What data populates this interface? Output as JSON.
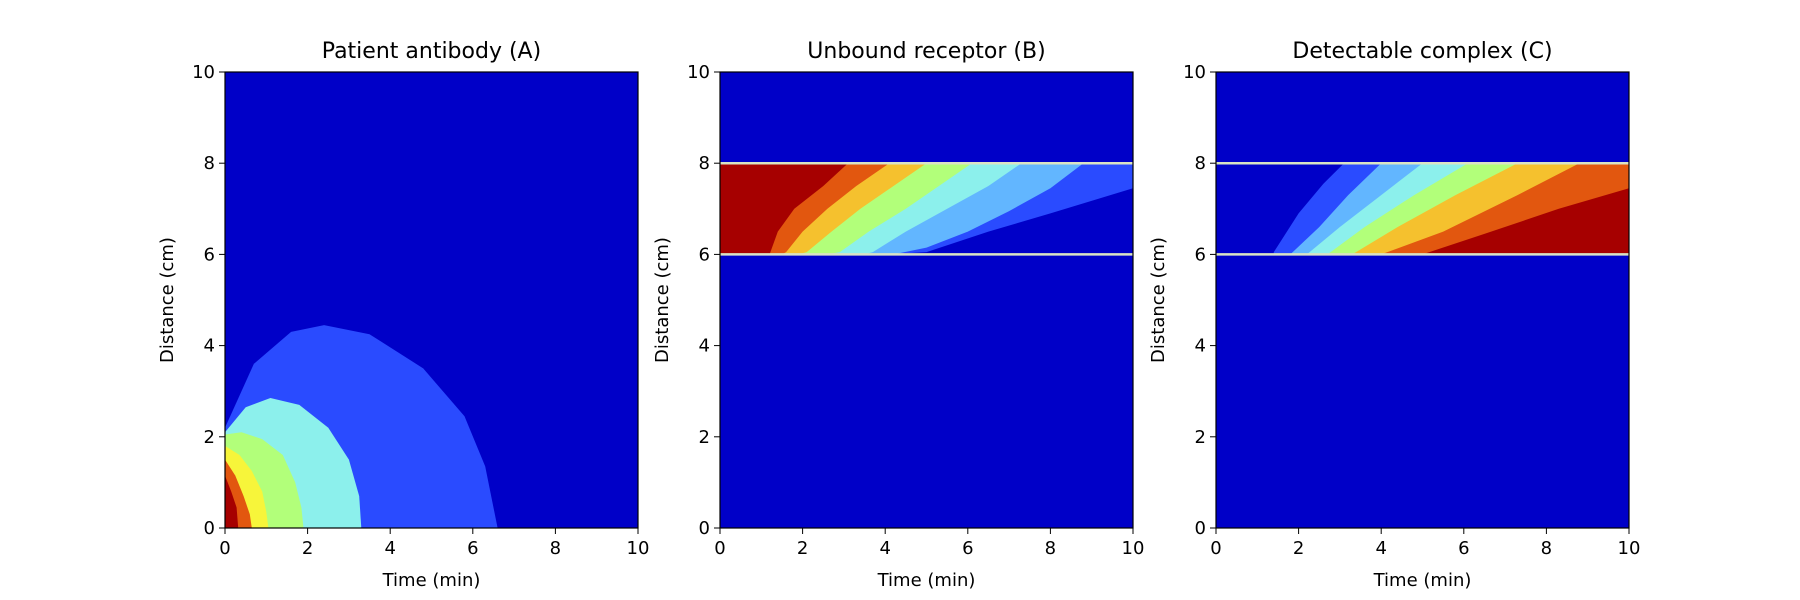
{
  "colors": {
    "background": "#0000c8",
    "level_1": "#2a4bff",
    "level_2": "#62b6ff",
    "level_3": "#8cf0ec",
    "level_4": "#b2ff7a",
    "level_5": "#f7f53a",
    "level_6": "#f5c12e",
    "level_7": "#e2570f",
    "level_8": "#a60000",
    "boundary": "#d9e3c4"
  },
  "chart_data": [
    {
      "type": "heatmap",
      "title": "Patient antibody (A)",
      "xlabel": "Time (min)",
      "ylabel": "Distance (cm)",
      "xlim": [
        0,
        10
      ],
      "ylim": [
        0,
        10
      ],
      "xticks": [
        "0",
        "2",
        "4",
        "6",
        "8",
        "10"
      ],
      "yticks": [
        "0",
        "2",
        "4",
        "6",
        "8",
        "10"
      ],
      "contours": [
        {
          "level": 1,
          "color": "level_1",
          "points": [
            [
              0,
              0
            ],
            [
              0,
              2.2
            ],
            [
              0.7,
              3.6
            ],
            [
              1.6,
              4.3
            ],
            [
              2.4,
              4.45
            ],
            [
              3.5,
              4.25
            ],
            [
              4.8,
              3.5
            ],
            [
              5.8,
              2.45
            ],
            [
              6.3,
              1.35
            ],
            [
              6.6,
              0
            ]
          ]
        },
        {
          "level": 3,
          "color": "level_3",
          "points": [
            [
              0,
              0
            ],
            [
              0,
              2.1
            ],
            [
              0.5,
              2.65
            ],
            [
              1.1,
              2.85
            ],
            [
              1.8,
              2.7
            ],
            [
              2.5,
              2.2
            ],
            [
              3.0,
              1.5
            ],
            [
              3.25,
              0.7
            ],
            [
              3.3,
              0
            ]
          ]
        },
        {
          "level": 4,
          "color": "level_4",
          "points": [
            [
              0,
              0
            ],
            [
              0,
              2.05
            ],
            [
              0.4,
              2.1
            ],
            [
              0.9,
              1.95
            ],
            [
              1.4,
              1.6
            ],
            [
              1.7,
              1.0
            ],
            [
              1.85,
              0.45
            ],
            [
              1.9,
              0
            ]
          ]
        },
        {
          "level": 5,
          "color": "level_5",
          "points": [
            [
              0,
              0
            ],
            [
              0,
              1.8
            ],
            [
              0.35,
              1.6
            ],
            [
              0.65,
              1.25
            ],
            [
              0.9,
              0.8
            ],
            [
              1.0,
              0.35
            ],
            [
              1.05,
              0
            ]
          ]
        },
        {
          "level": 7,
          "color": "level_7",
          "points": [
            [
              0,
              0
            ],
            [
              0,
              1.5
            ],
            [
              0.25,
              1.15
            ],
            [
              0.45,
              0.7
            ],
            [
              0.6,
              0.3
            ],
            [
              0.65,
              0
            ]
          ]
        },
        {
          "level": 8,
          "color": "level_8",
          "points": [
            [
              0,
              0
            ],
            [
              0,
              1.15
            ],
            [
              0.15,
              0.8
            ],
            [
              0.28,
              0.45
            ],
            [
              0.32,
              0
            ]
          ]
        }
      ]
    },
    {
      "type": "heatmap",
      "title": "Unbound receptor (B)",
      "xlabel": "Time (min)",
      "ylabel": "Distance (cm)",
      "xlim": [
        0,
        10
      ],
      "ylim": [
        0,
        10
      ],
      "xticks": [
        "0",
        "2",
        "4",
        "6",
        "8",
        "10"
      ],
      "yticks": [
        "0",
        "2",
        "4",
        "6",
        "8",
        "10"
      ],
      "band": [
        6,
        8
      ],
      "contours": [
        {
          "level": 1,
          "color": "level_1",
          "points": [
            [
              0,
              6
            ],
            [
              0,
              8
            ],
            [
              10,
              8
            ],
            [
              10,
              7.45
            ],
            [
              8,
              6.9
            ],
            [
              6.5,
              6.5
            ],
            [
              5,
              6.05
            ],
            [
              4,
              6
            ],
            [
              0,
              6
            ]
          ]
        },
        {
          "level": 2,
          "color": "level_2",
          "points": [
            [
              0,
              6
            ],
            [
              0,
              8
            ],
            [
              8.8,
              8
            ],
            [
              8,
              7.45
            ],
            [
              7,
              6.95
            ],
            [
              6,
              6.5
            ],
            [
              5,
              6.15
            ],
            [
              4.2,
              6
            ],
            [
              0,
              6
            ]
          ]
        },
        {
          "level": 3,
          "color": "level_3",
          "points": [
            [
              0,
              6
            ],
            [
              0,
              8
            ],
            [
              7.3,
              8
            ],
            [
              6.5,
              7.5
            ],
            [
              5.5,
              7
            ],
            [
              4.5,
              6.5
            ],
            [
              3.7,
              6.05
            ],
            [
              3.5,
              6
            ],
            [
              0,
              6
            ]
          ]
        },
        {
          "level": 4,
          "color": "level_4",
          "points": [
            [
              0,
              6
            ],
            [
              0,
              8
            ],
            [
              6.1,
              8
            ],
            [
              5.3,
              7.5
            ],
            [
              4.5,
              7
            ],
            [
              3.6,
              6.5
            ],
            [
              2.9,
              6.05
            ],
            [
              2.6,
              6
            ],
            [
              0,
              6
            ]
          ]
        },
        {
          "level": 6,
          "color": "level_6",
          "points": [
            [
              0,
              6
            ],
            [
              0,
              8
            ],
            [
              5,
              8
            ],
            [
              4.2,
              7.5
            ],
            [
              3.4,
              7
            ],
            [
              2.7,
              6.5
            ],
            [
              2.1,
              6.05
            ],
            [
              1.9,
              6
            ],
            [
              0,
              6
            ]
          ]
        },
        {
          "level": 7,
          "color": "level_7",
          "points": [
            [
              0,
              6
            ],
            [
              0,
              8
            ],
            [
              4.1,
              8
            ],
            [
              3.3,
              7.5
            ],
            [
              2.6,
              7
            ],
            [
              2.0,
              6.5
            ],
            [
              1.6,
              6.05
            ],
            [
              1.5,
              6
            ],
            [
              0,
              6
            ]
          ]
        },
        {
          "level": 8,
          "color": "level_8",
          "points": [
            [
              0,
              6
            ],
            [
              0,
              8
            ],
            [
              3.1,
              8
            ],
            [
              2.5,
              7.5
            ],
            [
              1.8,
              7
            ],
            [
              1.4,
              6.5
            ],
            [
              1.2,
              6
            ],
            [
              0,
              6
            ]
          ]
        }
      ]
    },
    {
      "type": "heatmap",
      "title": "Detectable complex (C)",
      "xlabel": "Time (min)",
      "ylabel": "Distance (cm)",
      "xlim": [
        0,
        10
      ],
      "ylim": [
        0,
        10
      ],
      "xticks": [
        "0",
        "2",
        "4",
        "6",
        "8",
        "10"
      ],
      "yticks": [
        "0",
        "2",
        "4",
        "6",
        "8",
        "10"
      ],
      "band": [
        6,
        8
      ],
      "contours": [
        {
          "level": 1,
          "color": "level_1",
          "points": [
            [
              1.4,
              6.05
            ],
            [
              2,
              6.9
            ],
            [
              2.6,
              7.55
            ],
            [
              3.1,
              8
            ],
            [
              10,
              8
            ],
            [
              10,
              6
            ],
            [
              1.4,
              6
            ]
          ]
        },
        {
          "level": 2,
          "color": "level_2",
          "points": [
            [
              1.8,
              6
            ],
            [
              2.5,
              6.6
            ],
            [
              3.2,
              7.3
            ],
            [
              4,
              8
            ],
            [
              10,
              8
            ],
            [
              10,
              6
            ]
          ]
        },
        {
          "level": 3,
          "color": "level_3",
          "points": [
            [
              2.2,
              6
            ],
            [
              3,
              6.6
            ],
            [
              4,
              7.3
            ],
            [
              5,
              8
            ],
            [
              10,
              8
            ],
            [
              10,
              6
            ]
          ]
        },
        {
          "level": 4,
          "color": "level_4",
          "points": [
            [
              2.7,
              6
            ],
            [
              3.6,
              6.6
            ],
            [
              4.8,
              7.3
            ],
            [
              6.1,
              8
            ],
            [
              10,
              8
            ],
            [
              10,
              6
            ]
          ]
        },
        {
          "level": 6,
          "color": "level_6",
          "points": [
            [
              3.3,
              6
            ],
            [
              4.4,
              6.6
            ],
            [
              5.8,
              7.3
            ],
            [
              7.3,
              8
            ],
            [
              10,
              8
            ],
            [
              10,
              6
            ]
          ]
        },
        {
          "level": 7,
          "color": "level_7",
          "points": [
            [
              4,
              6
            ],
            [
              5.5,
              6.5
            ],
            [
              7.3,
              7.3
            ],
            [
              8.8,
              8
            ],
            [
              10,
              8
            ],
            [
              10,
              6
            ]
          ]
        },
        {
          "level": 8,
          "color": "level_8",
          "points": [
            [
              5,
              6
            ],
            [
              6.5,
              6.45
            ],
            [
              8.3,
              7
            ],
            [
              10,
              7.45
            ],
            [
              10,
              6
            ]
          ]
        }
      ]
    }
  ]
}
